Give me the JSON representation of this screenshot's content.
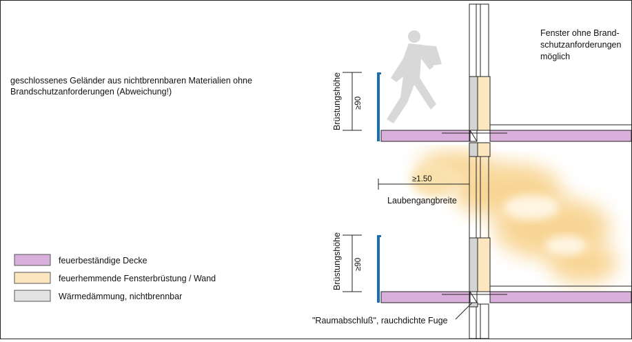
{
  "annotations": {
    "railing_line1": "geschlossenes Geländer aus nichtbrennbaren Materialien ohne",
    "railing_line2": "Brandschutzanforderungen (Abweichung!)",
    "window_line1": "Fenster ohne Brand-",
    "window_line2": "schutzanforderungen",
    "window_line3": "möglich",
    "parapet_height_top": "Brüstungshöhe",
    "parapet_height_bottom": "Brüstungshöhe",
    "parapet_value_top": "≥90",
    "parapet_value_bottom": "≥90",
    "width_value": "≥1.50",
    "width_label": "Laubengangbreite",
    "joint_label": "\"Raumabschluß\", rauchdichte Fuge"
  },
  "legend": {
    "items": [
      {
        "label": "feuerbeständige Decke",
        "color": "#d9b0dc"
      },
      {
        "label": "feuerhemmende Fensterbrüstung / Wand",
        "color": "#fbe6c0"
      },
      {
        "label": "Wärmedämmung, nichtbrennbar",
        "color": "#e3e3e3"
      }
    ]
  },
  "colors": {
    "slab": "#d9b0dc",
    "wall": "#fbe6c0",
    "insulation": "#d4d4d4",
    "railing": "#1a6fb4",
    "smoke": "#f6c873"
  }
}
